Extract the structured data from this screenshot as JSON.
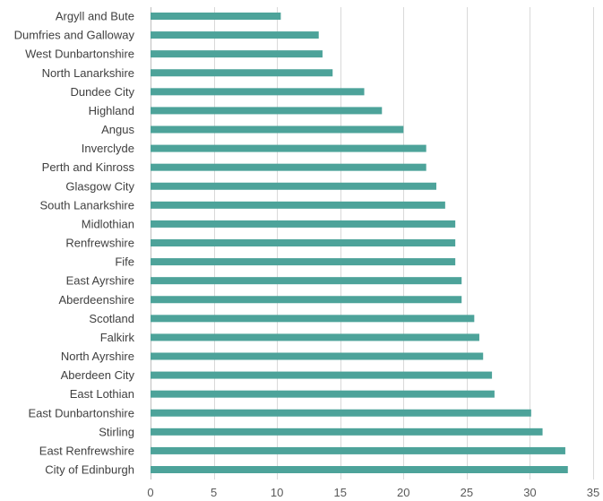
{
  "chart_data": {
    "type": "bar",
    "orientation": "horizontal",
    "title": "",
    "xlabel": "",
    "ylabel": "",
    "categories": [
      "Argyll and Bute",
      "Dumfries and Galloway",
      "West Dunbartonshire",
      "North Lanarkshire",
      "Dundee City",
      "Highland",
      "Angus",
      "Inverclyde",
      "Perth and Kinross",
      "Glasgow City",
      "South Lanarkshire",
      "Midlothian",
      "Renfrewshire",
      "Fife",
      "East Ayrshire",
      "Aberdeenshire",
      "Scotland",
      "Falkirk",
      "North Ayrshire",
      "Aberdeen City",
      "East Lothian",
      "East Dunbartonshire",
      "Stirling",
      "East Renfrewshire",
      "City of Edinburgh"
    ],
    "values": [
      10.3,
      13.3,
      13.6,
      14.4,
      16.9,
      18.3,
      20.0,
      21.8,
      21.8,
      22.6,
      23.3,
      24.1,
      24.1,
      24.1,
      24.6,
      24.6,
      25.6,
      26.0,
      26.3,
      27.0,
      27.2,
      30.1,
      31.0,
      32.8,
      33.0
    ],
    "xlim": [
      0,
      35
    ],
    "xticks": [
      0,
      5,
      10,
      15,
      20,
      25,
      30,
      35
    ],
    "grid": "vertical",
    "legend": "none",
    "bar_color": "#4da39a"
  }
}
